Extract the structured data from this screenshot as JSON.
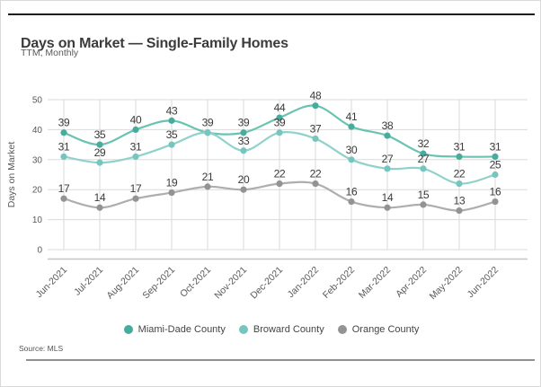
{
  "header": {
    "title": "Days on Market — Single-Family Homes",
    "subtitle": "TTM, Monthly"
  },
  "footer": {
    "source": "Source: MLS"
  },
  "colors": {
    "gridline": "#dadada",
    "axis_line": "#c4c4c4",
    "tick_text": "#595959",
    "data_label_text": "#3a3a3a",
    "top_rule": "#1c1c1c",
    "bottom_rule": "#909090"
  },
  "chart_data": {
    "type": "line",
    "title": "Days on Market — Single-Family Homes",
    "subtitle": "TTM, Monthly",
    "xlabel": "",
    "ylabel": "Days on Market",
    "ylim": [
      0,
      50
    ],
    "ytick_step": 10,
    "grid": true,
    "legend_position": "bottom",
    "smoothed_lines": true,
    "data_labels_shown": true,
    "categories": [
      "Jun-2021",
      "Jul-2021",
      "Aug-2021",
      "Sep-2021",
      "Oct-2021",
      "Nov-2021",
      "Dec-2021",
      "Jan-2022",
      "Feb-2022",
      "Mar-2022",
      "Apr-2022",
      "May-2022",
      "Jun-2022"
    ],
    "series": [
      {
        "name": "Miami-Dade County",
        "line_color": "#6ac3b2",
        "marker_color": "#47ac9c",
        "values": [
          39,
          35,
          40,
          43,
          39,
          39,
          44,
          48,
          41,
          38,
          32,
          31,
          31
        ],
        "hidden_label_indexes": []
      },
      {
        "name": "Broward County",
        "line_color": "#90d2cb",
        "marker_color": "#76c6bf",
        "values": [
          31,
          29,
          31,
          35,
          39,
          33,
          39,
          37,
          30,
          27,
          27,
          22,
          25
        ],
        "hidden_label_indexes": [
          4
        ]
      },
      {
        "name": "Orange County",
        "line_color": "#aeaeae",
        "marker_color": "#939393",
        "values": [
          17,
          14,
          17,
          19,
          21,
          20,
          22,
          22,
          16,
          14,
          15,
          13,
          16
        ],
        "hidden_label_indexes": []
      }
    ]
  }
}
